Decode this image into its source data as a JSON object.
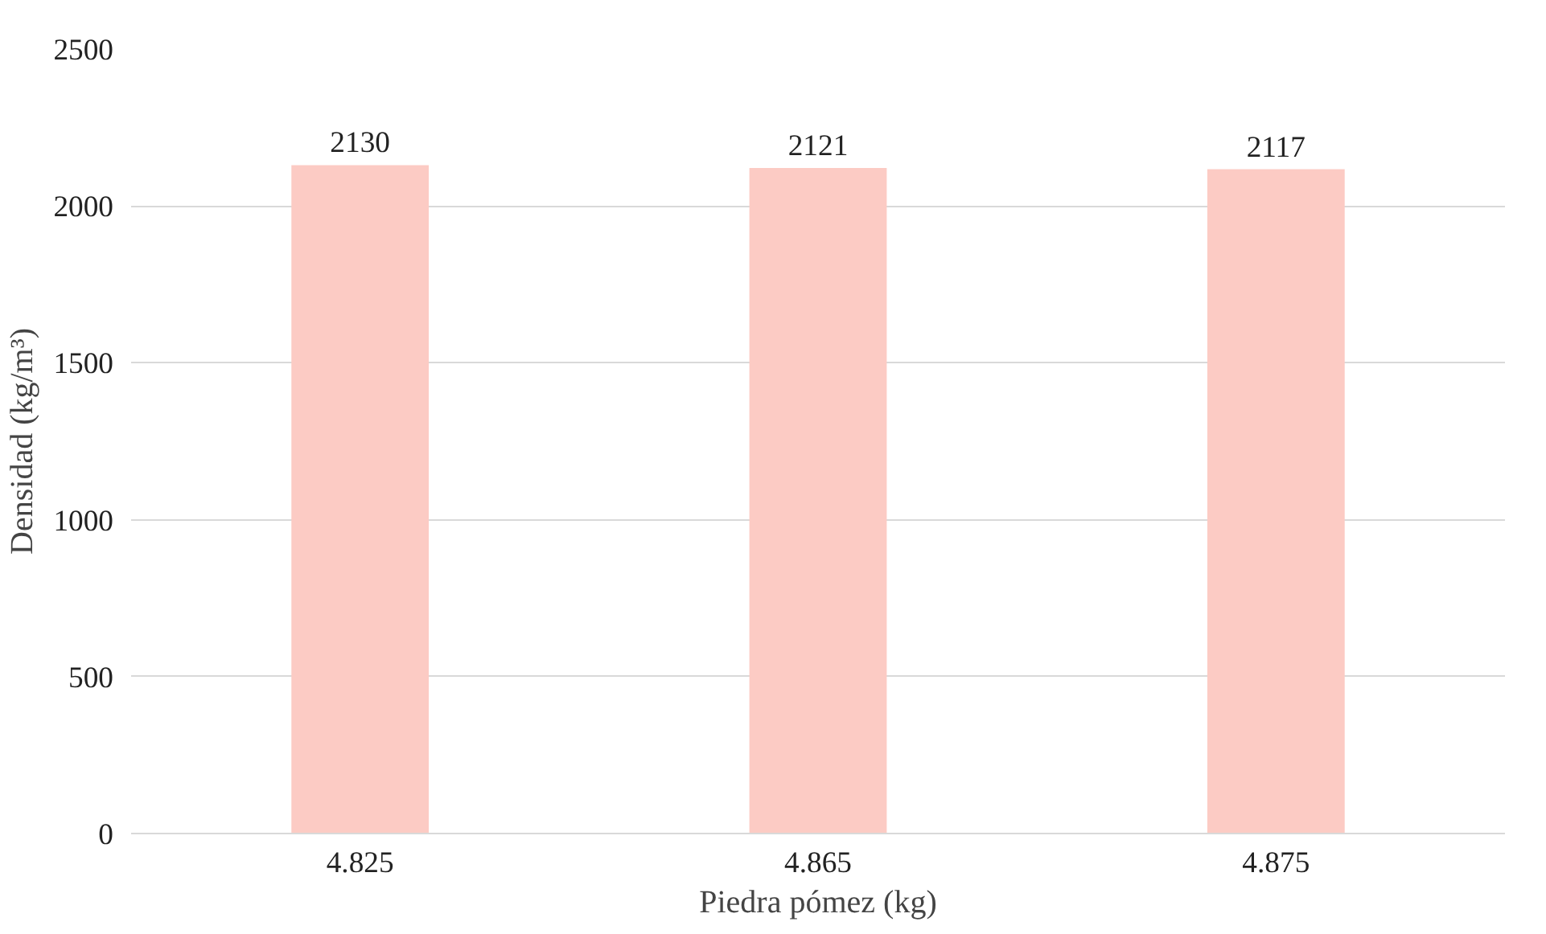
{
  "chart_data": {
    "type": "bar",
    "xlabel": "Piedra pómez (kg)",
    "ylabel": "Densidad (kg/m³)",
    "categories": [
      "4.825",
      "4.865",
      "4.875"
    ],
    "values": [
      2130,
      2121,
      2117
    ],
    "color": "#fccbc4",
    "ylim": [
      0,
      2500
    ],
    "yticks": [
      0,
      500,
      1000,
      1500,
      2000,
      2500
    ],
    "grid": "y",
    "data_labels": true
  }
}
